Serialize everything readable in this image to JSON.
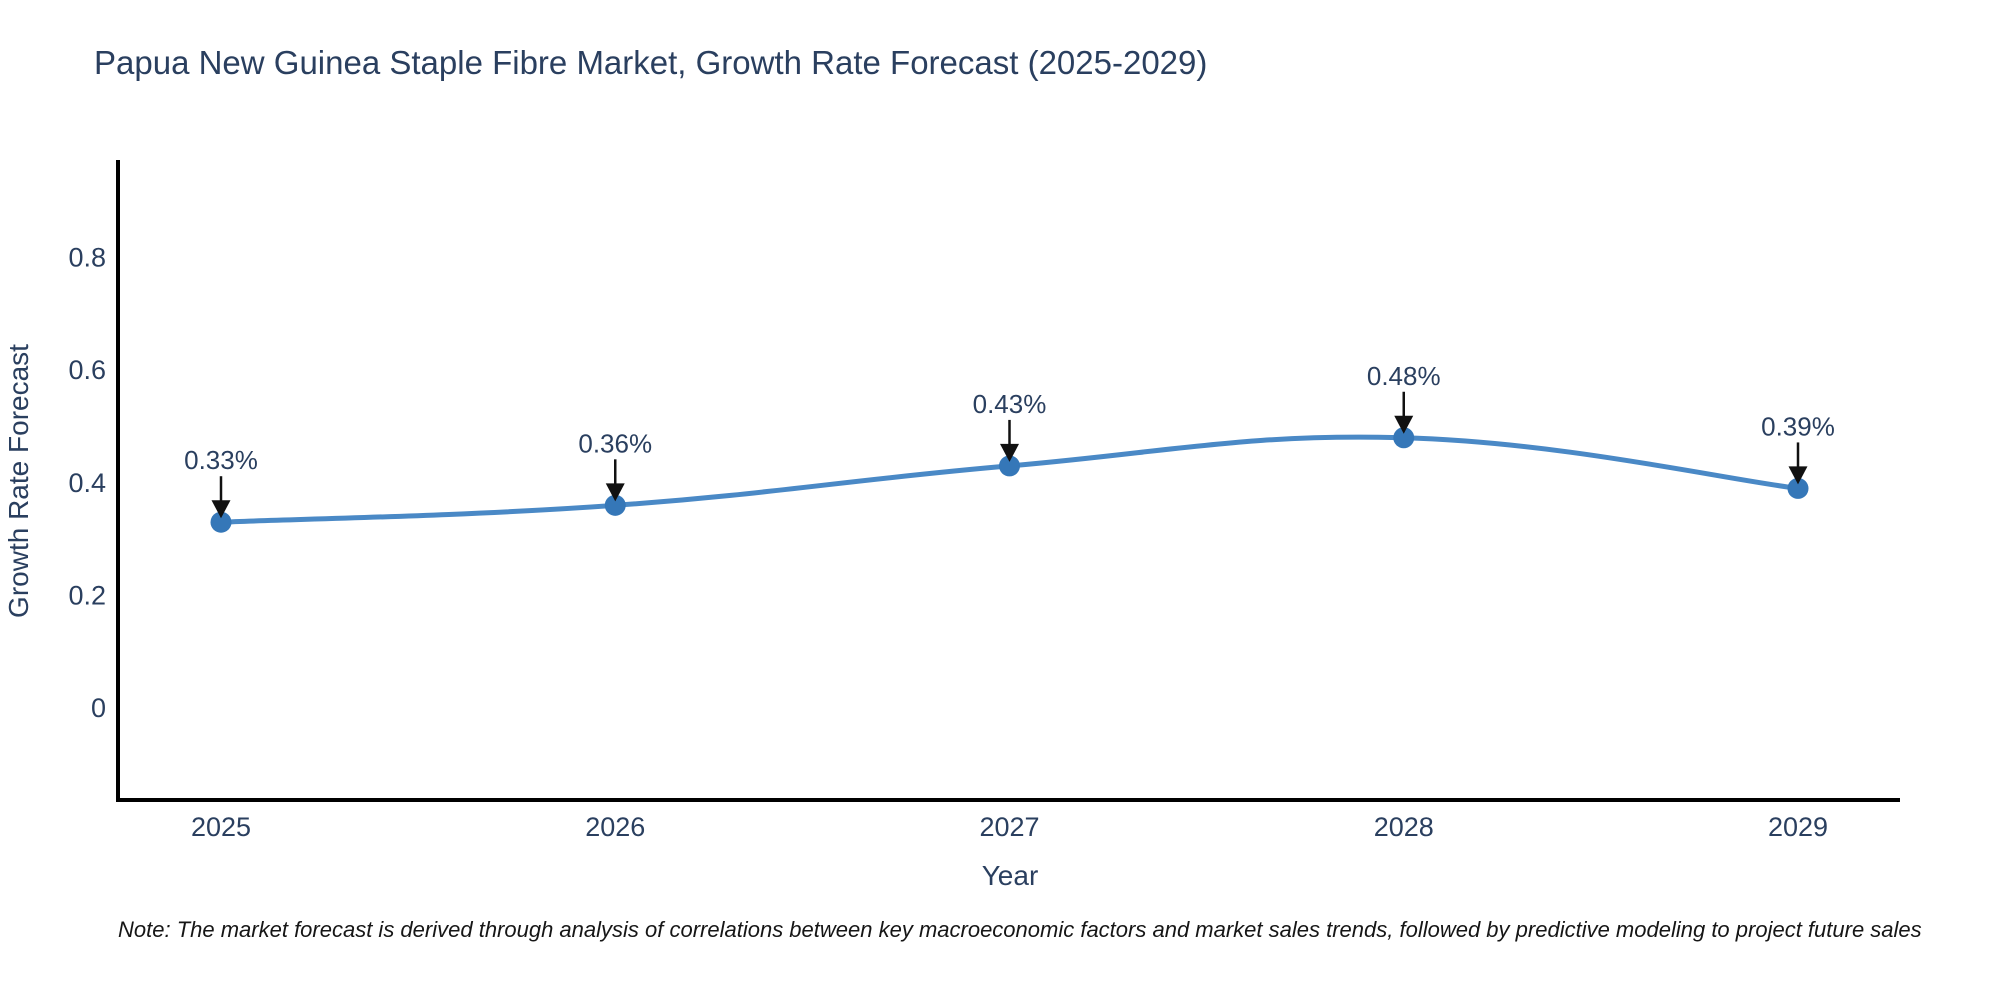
{
  "chart_data": {
    "type": "line",
    "title": "Papua New Guinea Staple Fibre Market, Growth Rate Forecast (2025-2029)",
    "xlabel": "Year",
    "ylabel": "Growth Rate Forecast",
    "categories": [
      "2025",
      "2026",
      "2027",
      "2028",
      "2029"
    ],
    "values": [
      0.33,
      0.36,
      0.43,
      0.48,
      0.39
    ],
    "point_labels": [
      "0.33%",
      "0.36%",
      "0.43%",
      "0.48%",
      "0.39%"
    ],
    "yticks": [
      0,
      0.2,
      0.4,
      0.6,
      0.8
    ],
    "ytick_labels": [
      "0",
      "0.2",
      "0.4",
      "0.6",
      "0.8"
    ],
    "ylim": [
      -0.16,
      0.97
    ],
    "grid": false,
    "legend": "none",
    "line_shape": "spline",
    "line_color": "#4a89c6",
    "marker_color": "#3577b8",
    "axis_color": "#000000",
    "text_color": "#2a3f5f",
    "annotation_arrow_color": "#111111"
  },
  "note": "Note: The market forecast is derived through analysis of correlations between key macroeconomic factors and market sales trends, followed by predictive modeling to project future sales"
}
